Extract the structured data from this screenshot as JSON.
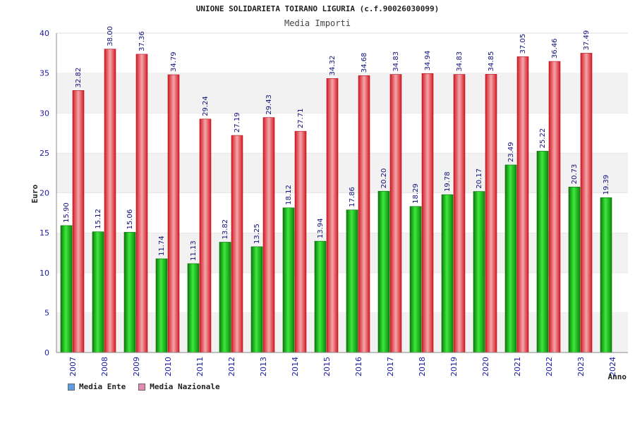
{
  "chart_data": {
    "type": "bar",
    "title": "UNIONE SOLIDARIETA TOIRANO LIGURIA (c.f.90026030099)",
    "subtitle": "Media Importi",
    "xlabel": "Anno",
    "ylabel": "Euro",
    "ylim": [
      0,
      40
    ],
    "yticks": [
      0,
      5,
      10,
      15,
      20,
      25,
      30,
      35,
      40
    ],
    "categories": [
      "2007",
      "2008",
      "2009",
      "2010",
      "2011",
      "2012",
      "2013",
      "2014",
      "2015",
      "2016",
      "2017",
      "2018",
      "2019",
      "2020",
      "2021",
      "2022",
      "2023",
      "2024"
    ],
    "series": [
      {
        "name": "Media Ente",
        "color": "#1fbf1f",
        "values": [
          15.9,
          15.12,
          15.06,
          11.74,
          11.13,
          13.82,
          13.25,
          18.12,
          13.94,
          17.86,
          20.2,
          18.29,
          19.78,
          20.17,
          23.49,
          25.22,
          20.73,
          19.39
        ],
        "labels": [
          "15.90",
          "15.12",
          "15.06",
          "11.74",
          "11.13",
          "13.82",
          "13.25",
          "18.12",
          "13.94",
          "17.86",
          "20.20",
          "18.29",
          "19.78",
          "20.17",
          "23.49",
          "25.22",
          "20.73",
          "19.39"
        ]
      },
      {
        "name": "Media Nazionale",
        "color": "#e8242e",
        "values": [
          32.82,
          38.0,
          37.36,
          34.79,
          29.24,
          27.19,
          29.43,
          27.71,
          34.32,
          34.68,
          34.83,
          34.94,
          34.83,
          34.85,
          37.05,
          36.46,
          37.49,
          null
        ],
        "labels": [
          "32.82",
          "38.00",
          "37.36",
          "34.79",
          "29.24",
          "27.19",
          "29.43",
          "27.71",
          "34.32",
          "34.68",
          "34.83",
          "34.94",
          "34.83",
          "34.85",
          "37.05",
          "36.46",
          "37.49",
          ""
        ]
      }
    ],
    "legend": [
      {
        "label": "Media Ente",
        "color": "#5aa0e6"
      },
      {
        "label": "Media Nazionale",
        "color": "#e68ab4"
      }
    ],
    "legend_position": "bottom-left",
    "grid": "horizontal bands"
  }
}
